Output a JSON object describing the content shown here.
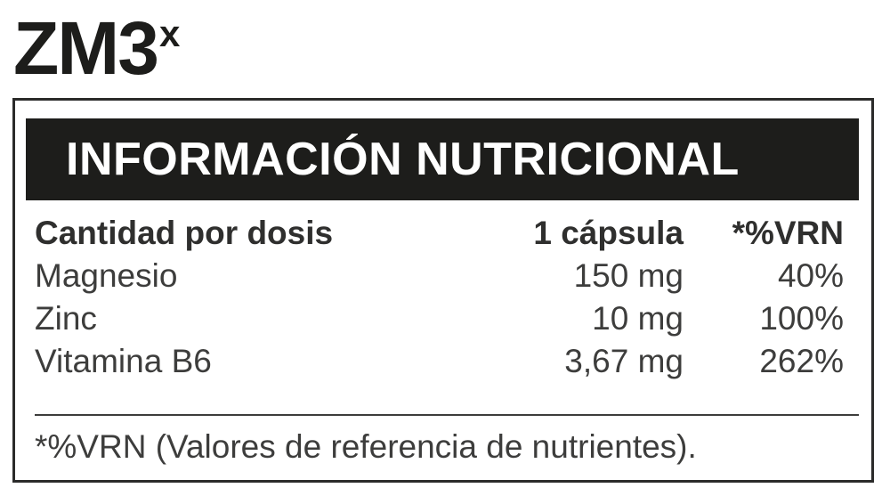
{
  "product": {
    "name": "ZM3",
    "superscript": "x"
  },
  "panel": {
    "header": "INFORMACIÓN NUTRICIONAL",
    "table": {
      "columns": [
        "Cantidad por dosis",
        "1 cápsula",
        "*%VRN"
      ],
      "rows": [
        {
          "nutrient": "Magnesio",
          "amount": "150 mg",
          "vrn": "40%"
        },
        {
          "nutrient": "Zinc",
          "amount": "10 mg",
          "vrn": "100%"
        },
        {
          "nutrient": "Vitamina B6",
          "amount": "3,67 mg",
          "vrn": "262%"
        }
      ]
    },
    "footnote": "*%VRN (Valores de referencia de nutrientes)."
  },
  "colors": {
    "ink": "#1d1d1b",
    "table_text": "#3d3d3c",
    "header_text": "#ffffff",
    "border": "#2b2b2a",
    "background": "#ffffff"
  }
}
